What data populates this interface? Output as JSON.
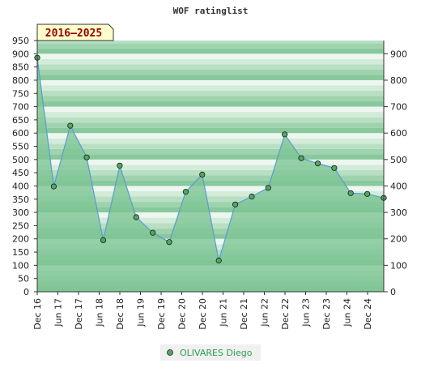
{
  "chart_data": {
    "type": "area",
    "title": "WOF ratinglist",
    "range_badge": "2016–2025",
    "x_tick_labels": [
      "Dec 16",
      "Jun 17",
      "Dec 17",
      "Jun 18",
      "Dec 18",
      "Jun 19",
      "Dec 19",
      "Dec 20",
      "Dec 20",
      "Jun 21",
      "Dec 21",
      "Jun 22",
      "Dec 22",
      "Jun 23",
      "Dec 23",
      "Jun 24",
      "Dec 24"
    ],
    "y_left_ticks": [
      0,
      50,
      100,
      150,
      200,
      250,
      300,
      350,
      400,
      450,
      500,
      550,
      600,
      650,
      700,
      750,
      800,
      850,
      900,
      950
    ],
    "y_right_ticks": [
      0,
      100,
      200,
      300,
      400,
      500,
      600,
      700,
      800,
      900
    ],
    "ylim": [
      0,
      950
    ],
    "series": [
      {
        "name": "OLIVARES Diego",
        "values": [
          885,
          398,
          628,
          508,
          195,
          477,
          282,
          223,
          188,
          378,
          443,
          118,
          330,
          360,
          393,
          595,
          505,
          485,
          468,
          373,
          370,
          355
        ]
      }
    ],
    "legend_position": "bottom-center",
    "grid": true,
    "colors": {
      "fill": "#7cc494",
      "line": "#5b9bd5",
      "marker": "#4fa860"
    }
  }
}
